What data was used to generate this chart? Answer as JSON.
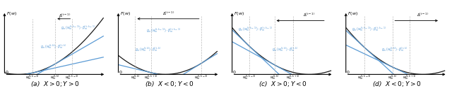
{
  "fig_width": 6.4,
  "fig_height": 1.33,
  "dpi": 100,
  "panels": [
    {
      "label": "(a)  $X > 0; Y > 0$",
      "case": "a"
    },
    {
      "label": "(b)  $X < 0; Y < 0$",
      "case": "b"
    },
    {
      "label": "(c)  $X > 0; Y < 0$",
      "case": "c"
    },
    {
      "label": "(d)  $X < 0; Y > 0$",
      "case": "d"
    }
  ],
  "curve_color": "#1a1a1a",
  "tangent_color": "#5b9bd5",
  "vline_color": "#bbbbbb",
  "bg_color": "#ffffff"
}
